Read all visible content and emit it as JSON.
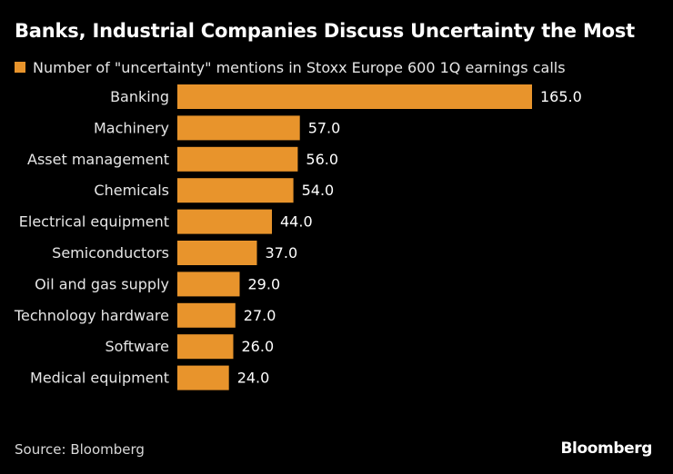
{
  "colors": {
    "background": "#000000",
    "bar": "#e8942c",
    "text": "#ffffff"
  },
  "footer": {
    "source": "Source: Bloomberg",
    "brand": "Bloomberg"
  },
  "chart_data": {
    "type": "bar",
    "orientation": "horizontal",
    "title": "Banks, Industrial Companies Discuss Uncertainty the Most",
    "legend": [
      "Number of \"uncertainty\" mentions in Stoxx Europe 600 1Q earnings calls"
    ],
    "categories": [
      "Banking",
      "Machinery",
      "Asset management",
      "Chemicals",
      "Electrical equipment",
      "Semiconductors",
      "Oil and gas supply",
      "Technology hardware",
      "Software",
      "Medical equipment"
    ],
    "values": [
      165,
      57,
      56,
      54,
      44,
      37,
      29,
      27,
      26,
      24
    ],
    "value_labels": [
      "165.0",
      "57.0",
      "56.0",
      "54.0",
      "44.0",
      "37.0",
      "29.0",
      "27.0",
      "26.0",
      "24.0"
    ],
    "xlim": [
      0,
      165
    ],
    "xlabel": "",
    "ylabel": "",
    "grid": false
  }
}
